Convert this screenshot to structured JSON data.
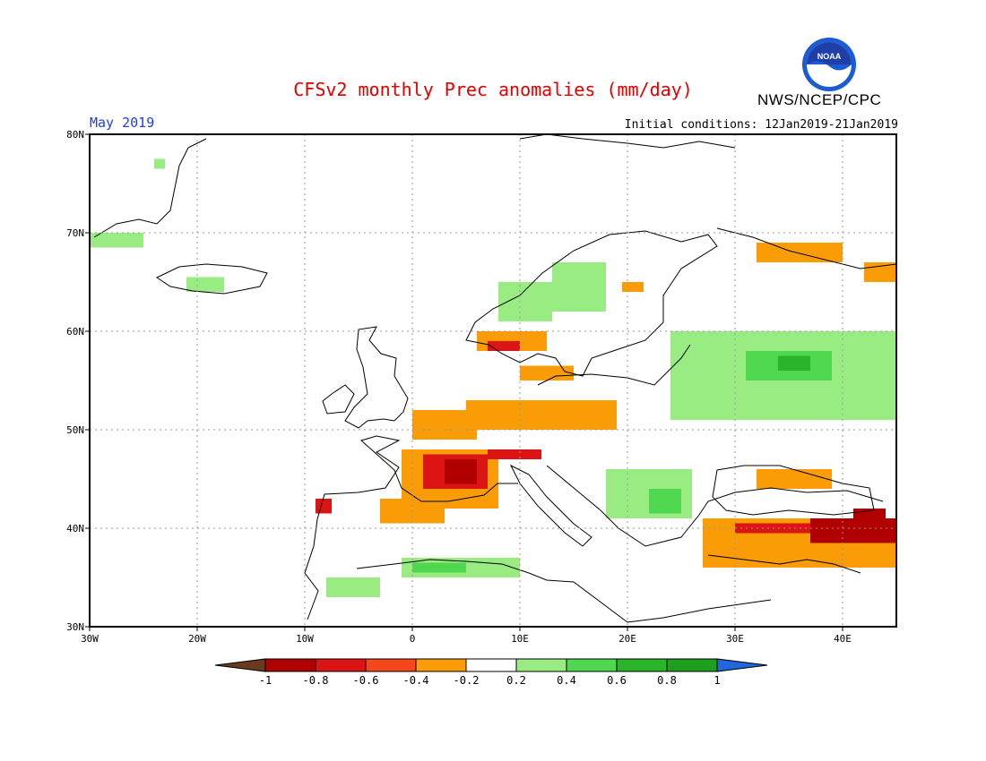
{
  "header": {
    "title": "CFSv2 monthly Prec anomalies (mm/day)",
    "period": "May 2019",
    "initial_conditions": "Initial conditions: 12Jan2019-21Jan2019",
    "agency": "NWS/NCEP/CPC",
    "logo_text": "NOAA"
  },
  "map": {
    "lon_range": [
      -30,
      45
    ],
    "lat_range": [
      30,
      80
    ],
    "lon_ticks": [
      {
        "value": -30,
        "label": "30W"
      },
      {
        "value": -20,
        "label": "20W"
      },
      {
        "value": -10,
        "label": "10W"
      },
      {
        "value": 0,
        "label": "0"
      },
      {
        "value": 10,
        "label": "10E"
      },
      {
        "value": 20,
        "label": "20E"
      },
      {
        "value": 30,
        "label": "30E"
      },
      {
        "value": 40,
        "label": "40E"
      }
    ],
    "lat_ticks": [
      {
        "value": 30,
        "label": "30N"
      },
      {
        "value": 40,
        "label": "40N"
      },
      {
        "value": 50,
        "label": "50N"
      },
      {
        "value": 60,
        "label": "60N"
      },
      {
        "value": 70,
        "label": "70N"
      },
      {
        "value": 80,
        "label": "80N"
      }
    ],
    "grid": true,
    "anomaly_regions": [
      {
        "region": "Greenland east",
        "class": "wet1",
        "lon": [
          -30,
          -25
        ],
        "lat": [
          68.5,
          70
        ]
      },
      {
        "region": "Greenland coast",
        "class": "wet1",
        "lon": [
          -24,
          -23
        ],
        "lat": [
          76.5,
          77.5
        ]
      },
      {
        "region": "Iceland",
        "class": "wet1",
        "lon": [
          -21,
          -17.5
        ],
        "lat": [
          64,
          65.5
        ]
      },
      {
        "region": "Norway west",
        "class": "wet1",
        "lon": [
          8,
          13
        ],
        "lat": [
          61,
          65
        ]
      },
      {
        "region": "Norway north",
        "class": "wet1",
        "lon": [
          13,
          18
        ],
        "lat": [
          62,
          67
        ]
      },
      {
        "region": "Norway south",
        "class": "dry2",
        "lon": [
          6,
          12.5
        ],
        "lat": [
          58,
          60
        ]
      },
      {
        "region": "Norway southwest",
        "class": "dry3",
        "lon": [
          7,
          10
        ],
        "lat": [
          58,
          59
        ]
      },
      {
        "region": "Denmark",
        "class": "dry2",
        "lon": [
          10,
          15
        ],
        "lat": [
          55,
          56.5
        ]
      },
      {
        "region": "Finland north",
        "class": "dry2",
        "lon": [
          19.5,
          21.5
        ],
        "lat": [
          64,
          65
        ]
      },
      {
        "region": "Northwest Russia",
        "class": "dry2",
        "lon": [
          32,
          40
        ],
        "lat": [
          67,
          69
        ]
      },
      {
        "region": "Arctic coast",
        "class": "dry2",
        "lon": [
          42,
          45
        ],
        "lat": [
          65,
          67
        ]
      },
      {
        "region": "Western Russia",
        "class": "wet1",
        "lon": [
          24,
          45
        ],
        "lat": [
          51,
          60
        ]
      },
      {
        "region": "Western Russia core",
        "class": "wet2",
        "lon": [
          31,
          39
        ],
        "lat": [
          55,
          58
        ]
      },
      {
        "region": "Western Russia max",
        "class": "wet3",
        "lon": [
          34,
          37
        ],
        "lat": [
          56,
          57.5
        ]
      },
      {
        "region": "Germany",
        "class": "dry2",
        "lon": [
          5,
          19
        ],
        "lat": [
          50,
          53
        ]
      },
      {
        "region": "Benelux",
        "class": "dry2",
        "lon": [
          0,
          6
        ],
        "lat": [
          49,
          52
        ]
      },
      {
        "region": "France",
        "class": "dry2",
        "lon": [
          -1,
          8
        ],
        "lat": [
          42,
          48
        ]
      },
      {
        "region": "France central",
        "class": "dry3",
        "lon": [
          1,
          7
        ],
        "lat": [
          44,
          47.5
        ]
      },
      {
        "region": "France core",
        "class": "dry4",
        "lon": [
          3,
          6
        ],
        "lat": [
          44.5,
          47
        ]
      },
      {
        "region": "Alps",
        "class": "dry3",
        "lon": [
          7,
          12
        ],
        "lat": [
          47,
          48
        ]
      },
      {
        "region": "Northern Spain",
        "class": "dry2",
        "lon": [
          -3,
          3
        ],
        "lat": [
          40.5,
          43
        ]
      },
      {
        "region": "Portugal north",
        "class": "dry3",
        "lon": [
          -9,
          -7.5
        ],
        "lat": [
          41.5,
          43
        ]
      },
      {
        "region": "Balkans",
        "class": "wet1",
        "lon": [
          18,
          26
        ],
        "lat": [
          41,
          46
        ]
      },
      {
        "region": "Romania",
        "class": "wet2",
        "lon": [
          22,
          25
        ],
        "lat": [
          41.5,
          44
        ]
      },
      {
        "region": "Algeria north",
        "class": "wet1",
        "lon": [
          -1,
          10
        ],
        "lat": [
          35,
          37
        ]
      },
      {
        "region": "Algeria core",
        "class": "wet2",
        "lon": [
          0,
          5
        ],
        "lat": [
          35.5,
          36.5
        ]
      },
      {
        "region": "Morocco",
        "class": "wet1",
        "lon": [
          -8,
          -3
        ],
        "lat": [
          33,
          35
        ]
      },
      {
        "region": "Turkey",
        "class": "dry2",
        "lon": [
          27,
          45
        ],
        "lat": [
          36,
          41
        ]
      },
      {
        "region": "Turkey north",
        "class": "dry3",
        "lon": [
          30,
          39
        ],
        "lat": [
          39.5,
          40.5
        ]
      },
      {
        "region": "Turkey east",
        "class": "dry4",
        "lon": [
          37,
          45
        ],
        "lat": [
          38.5,
          41
        ]
      },
      {
        "region": "Caucasus",
        "class": "dry4",
        "lon": [
          41,
          44
        ],
        "lat": [
          40,
          42
        ]
      },
      {
        "region": "Crimea",
        "class": "dry2",
        "lon": [
          32,
          39
        ],
        "lat": [
          44,
          46
        ]
      }
    ]
  },
  "colorbar": {
    "ticks": [
      "-1",
      "-0.8",
      "-0.6",
      "-0.4",
      "-0.2",
      "0.2",
      "0.4",
      "0.6",
      "0.8",
      "1"
    ],
    "classes": [
      {
        "name": "below -1",
        "color": "#6b3a1e"
      },
      {
        "name": "dry4",
        "color": "#b00000"
      },
      {
        "name": "dry3",
        "color": "#dc1414"
      },
      {
        "name": "dry2b",
        "color": "#f5461e"
      },
      {
        "name": "dry2",
        "color": "#fa9c05"
      },
      {
        "name": "neutral",
        "color": "#ffffff"
      },
      {
        "name": "wet1",
        "color": "#98ec82"
      },
      {
        "name": "wet2",
        "color": "#4fd84f"
      },
      {
        "name": "wet3",
        "color": "#2ab42a"
      },
      {
        "name": "wet4",
        "color": "#1e9e1e"
      },
      {
        "name": "above 1",
        "color": "#2066dc"
      }
    ]
  }
}
